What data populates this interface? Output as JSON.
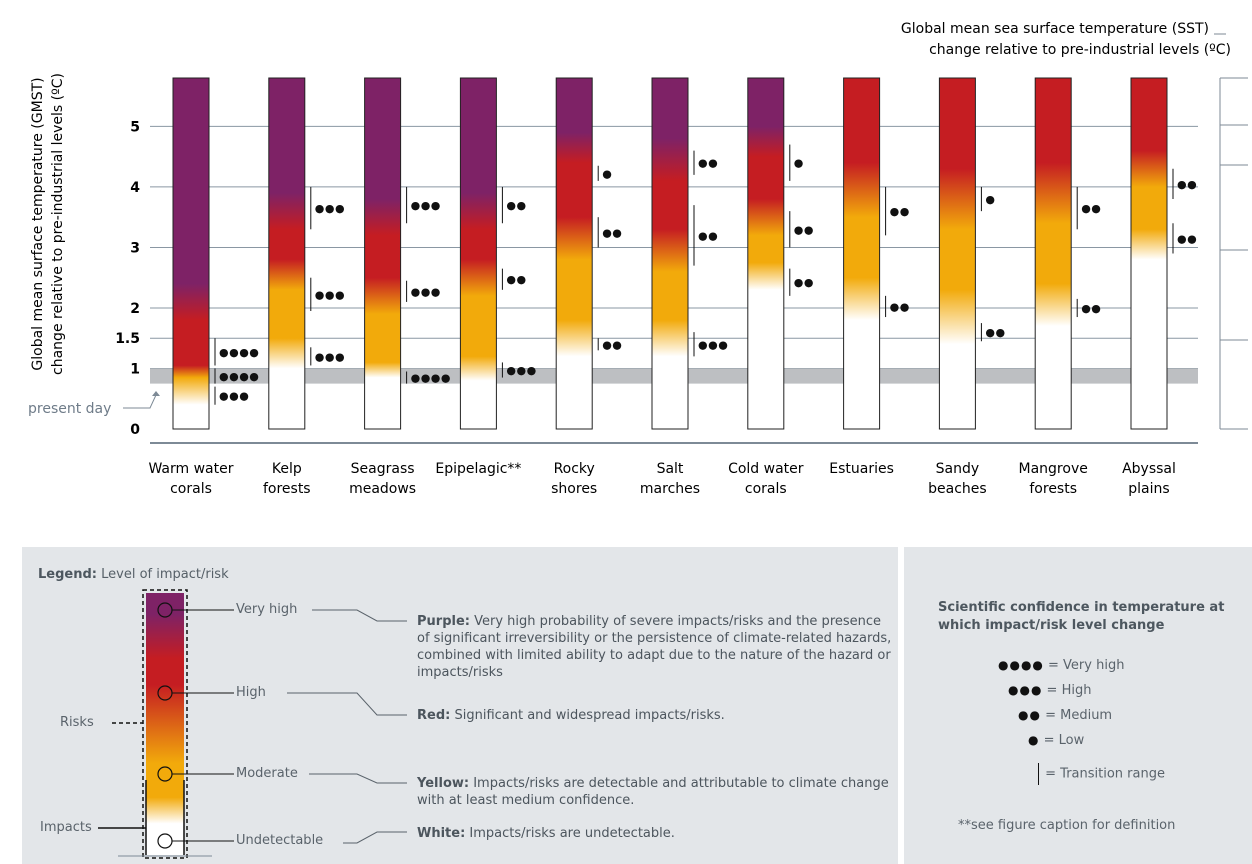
{
  "chart_data": {
    "type": "heatmap",
    "title": "",
    "ylabel_left": [
      "Global mean surface temperature (GMST)",
      "change relative to pre-industrial levels (ºC)"
    ],
    "ylabel_right": [
      "Global mean sea surface temperature (SST)",
      "change relative to pre-industrial levels (ºC)"
    ],
    "yticks": [
      "0",
      "1",
      "1.5",
      "2",
      "3",
      "4",
      "5"
    ],
    "ylim": [
      0,
      5.8
    ],
    "present_day_label": "present day",
    "present_day_band": [
      0.75,
      1.0
    ],
    "colors": {
      "white": "#ffffff",
      "yellow": "#f2aa0b",
      "red": "#c51d22",
      "purple": "#7e2266",
      "band": "#bdbfc2",
      "axis": "#7d8a96"
    },
    "categories": [
      {
        "label": [
          "Warm water",
          "corals"
        ],
        "color_stops": [
          [
            0.4,
            "white"
          ],
          [
            0.85,
            "yellow"
          ],
          [
            1.05,
            "red"
          ],
          [
            1.8,
            "red"
          ],
          [
            2.4,
            "purple"
          ]
        ],
        "transitions": [
          {
            "from": 1.05,
            "to": 1.5,
            "dots": "●●●●"
          },
          {
            "from": 0.75,
            "to": 1.0,
            "dots": "●●●●"
          },
          {
            "from": 0.4,
            "to": 0.7,
            "dots": "●●●"
          }
        ]
      },
      {
        "label": [
          "Kelp",
          "forests"
        ],
        "color_stops": [
          [
            1.0,
            "white"
          ],
          [
            1.5,
            "yellow"
          ],
          [
            2.3,
            "yellow"
          ],
          [
            2.8,
            "red"
          ],
          [
            3.3,
            "red"
          ],
          [
            3.9,
            "purple"
          ]
        ],
        "transitions": [
          {
            "from": 1.05,
            "to": 1.35,
            "dots": "●●●"
          },
          {
            "from": 1.95,
            "to": 2.5,
            "dots": "●●●"
          },
          {
            "from": 3.3,
            "to": 4.0,
            "dots": "●●●"
          }
        ]
      },
      {
        "label": [
          "Seagrass",
          "meadows"
        ],
        "color_stops": [
          [
            0.85,
            "white"
          ],
          [
            1.1,
            "yellow"
          ],
          [
            1.9,
            "yellow"
          ],
          [
            2.5,
            "red"
          ],
          [
            3.2,
            "red"
          ],
          [
            3.8,
            "purple"
          ]
        ],
        "transitions": [
          {
            "from": 0.75,
            "to": 0.95,
            "dots": "●●●●"
          },
          {
            "from": 2.1,
            "to": 2.45,
            "dots": "●●●"
          },
          {
            "from": 3.4,
            "to": 4.0,
            "dots": "●●●"
          }
        ]
      },
      {
        "label": [
          "Epipelagic**"
        ],
        "color_stops": [
          [
            0.8,
            "white"
          ],
          [
            1.2,
            "yellow"
          ],
          [
            2.2,
            "yellow"
          ],
          [
            2.8,
            "red"
          ],
          [
            3.3,
            "red"
          ],
          [
            3.9,
            "purple"
          ]
        ],
        "transitions": [
          {
            "from": 0.85,
            "to": 1.1,
            "dots": "●●●"
          },
          {
            "from": 2.3,
            "to": 2.65,
            "dots": "●●"
          },
          {
            "from": 3.4,
            "to": 4.0,
            "dots": "●●"
          }
        ]
      },
      {
        "label": [
          "Rocky",
          "shores"
        ],
        "color_stops": [
          [
            1.2,
            "white"
          ],
          [
            1.8,
            "yellow"
          ],
          [
            2.8,
            "yellow"
          ],
          [
            3.5,
            "red"
          ],
          [
            4.4,
            "red"
          ],
          [
            4.9,
            "purple"
          ]
        ],
        "transitions": [
          {
            "from": 1.3,
            "to": 1.5,
            "dots": "●●"
          },
          {
            "from": 3.0,
            "to": 3.5,
            "dots": "●●"
          },
          {
            "from": 4.1,
            "to": 4.35,
            "dots": "●"
          }
        ]
      },
      {
        "label": [
          "Salt",
          "marches"
        ],
        "color_stops": [
          [
            1.2,
            "white"
          ],
          [
            1.8,
            "yellow"
          ],
          [
            2.6,
            "yellow"
          ],
          [
            3.3,
            "red"
          ],
          [
            4.1,
            "red"
          ],
          [
            4.8,
            "purple"
          ]
        ],
        "transitions": [
          {
            "from": 1.2,
            "to": 1.6,
            "dots": "●●●"
          },
          {
            "from": 2.7,
            "to": 3.7,
            "dots": "●●"
          },
          {
            "from": 4.2,
            "to": 4.6,
            "dots": "●●"
          }
        ]
      },
      {
        "label": [
          "Cold water",
          "corals"
        ],
        "color_stops": [
          [
            2.3,
            "white"
          ],
          [
            2.75,
            "yellow"
          ],
          [
            3.2,
            "yellow"
          ],
          [
            3.8,
            "red"
          ],
          [
            4.5,
            "red"
          ],
          [
            5.0,
            "purple"
          ]
        ],
        "transitions": [
          {
            "from": 2.2,
            "to": 2.65,
            "dots": "●●"
          },
          {
            "from": 3.0,
            "to": 3.6,
            "dots": "●●"
          },
          {
            "from": 4.1,
            "to": 4.7,
            "dots": "●"
          }
        ]
      },
      {
        "label": [
          "Estuaries"
        ],
        "color_stops": [
          [
            1.8,
            "white"
          ],
          [
            2.5,
            "yellow"
          ],
          [
            3.5,
            "yellow"
          ],
          [
            4.4,
            "red"
          ],
          [
            5.8,
            "red"
          ]
        ],
        "transitions": [
          {
            "from": 1.85,
            "to": 2.2,
            "dots": "●●"
          },
          {
            "from": 3.2,
            "to": 4.0,
            "dots": "●●"
          }
        ]
      },
      {
        "label": [
          "Sandy",
          "beaches"
        ],
        "color_stops": [
          [
            1.4,
            "white"
          ],
          [
            2.3,
            "yellow"
          ],
          [
            3.3,
            "yellow"
          ],
          [
            4.3,
            "red"
          ],
          [
            5.8,
            "red"
          ]
        ],
        "transitions": [
          {
            "from": 1.45,
            "to": 1.75,
            "dots": "●●"
          },
          {
            "from": 3.6,
            "to": 4.0,
            "dots": "●"
          }
        ]
      },
      {
        "label": [
          "Mangrove",
          "forests"
        ],
        "color_stops": [
          [
            1.7,
            "white"
          ],
          [
            2.4,
            "yellow"
          ],
          [
            3.4,
            "yellow"
          ],
          [
            4.4,
            "red"
          ],
          [
            5.8,
            "red"
          ]
        ],
        "transitions": [
          {
            "from": 1.85,
            "to": 2.15,
            "dots": "●●"
          },
          {
            "from": 3.3,
            "to": 4.0,
            "dots": "●●"
          }
        ]
      },
      {
        "label": [
          "Abyssal",
          "plains"
        ],
        "color_stops": [
          [
            2.8,
            "white"
          ],
          [
            3.3,
            "yellow"
          ],
          [
            4.0,
            "yellow"
          ],
          [
            4.6,
            "red"
          ],
          [
            5.8,
            "red"
          ]
        ],
        "transitions": [
          {
            "from": 2.9,
            "to": 3.4,
            "dots": "●●"
          },
          {
            "from": 3.8,
            "to": 4.3,
            "dots": "●●"
          }
        ]
      }
    ]
  },
  "legend": {
    "title_bold": "Legend:",
    "title_rest": " Level of impact/risk",
    "risks_label": "Risks",
    "impacts_label": "Impacts",
    "levels": {
      "very_high": "Very high",
      "high": "High",
      "moderate": "Moderate",
      "undetectable": "Undetectable"
    },
    "descriptions": {
      "purple_bold": "Purple:",
      "purple_text": " Very high probability of severe impacts/risks and the presence of significant irreversibility or the persistence of climate-related hazards, combined with limited ability to adapt due to the nature of the hazard or impacts/risks",
      "red_bold": "Red:",
      "red_text": " Significant and widespread impacts/risks.",
      "yellow_bold": "Yellow:",
      "yellow_text": " Impacts/risks are detectable and attributable to climate change with at least medium confidence.",
      "white_bold": "White:",
      "white_text": " Impacts/risks are undetectable."
    }
  },
  "confidence": {
    "title": "Scientific confidence in temperature at which impact/risk level change",
    "very_high_dots": "●●●●",
    "very_high_text": " = Very high",
    "high_dots": "●●●",
    "high_text": " = High",
    "medium_dots": "●●",
    "medium_text": " = Medium",
    "low_dots": "●",
    "low_text": " = Low",
    "transition_text": " = Transition range",
    "footnote": "**see figure caption for definition"
  }
}
